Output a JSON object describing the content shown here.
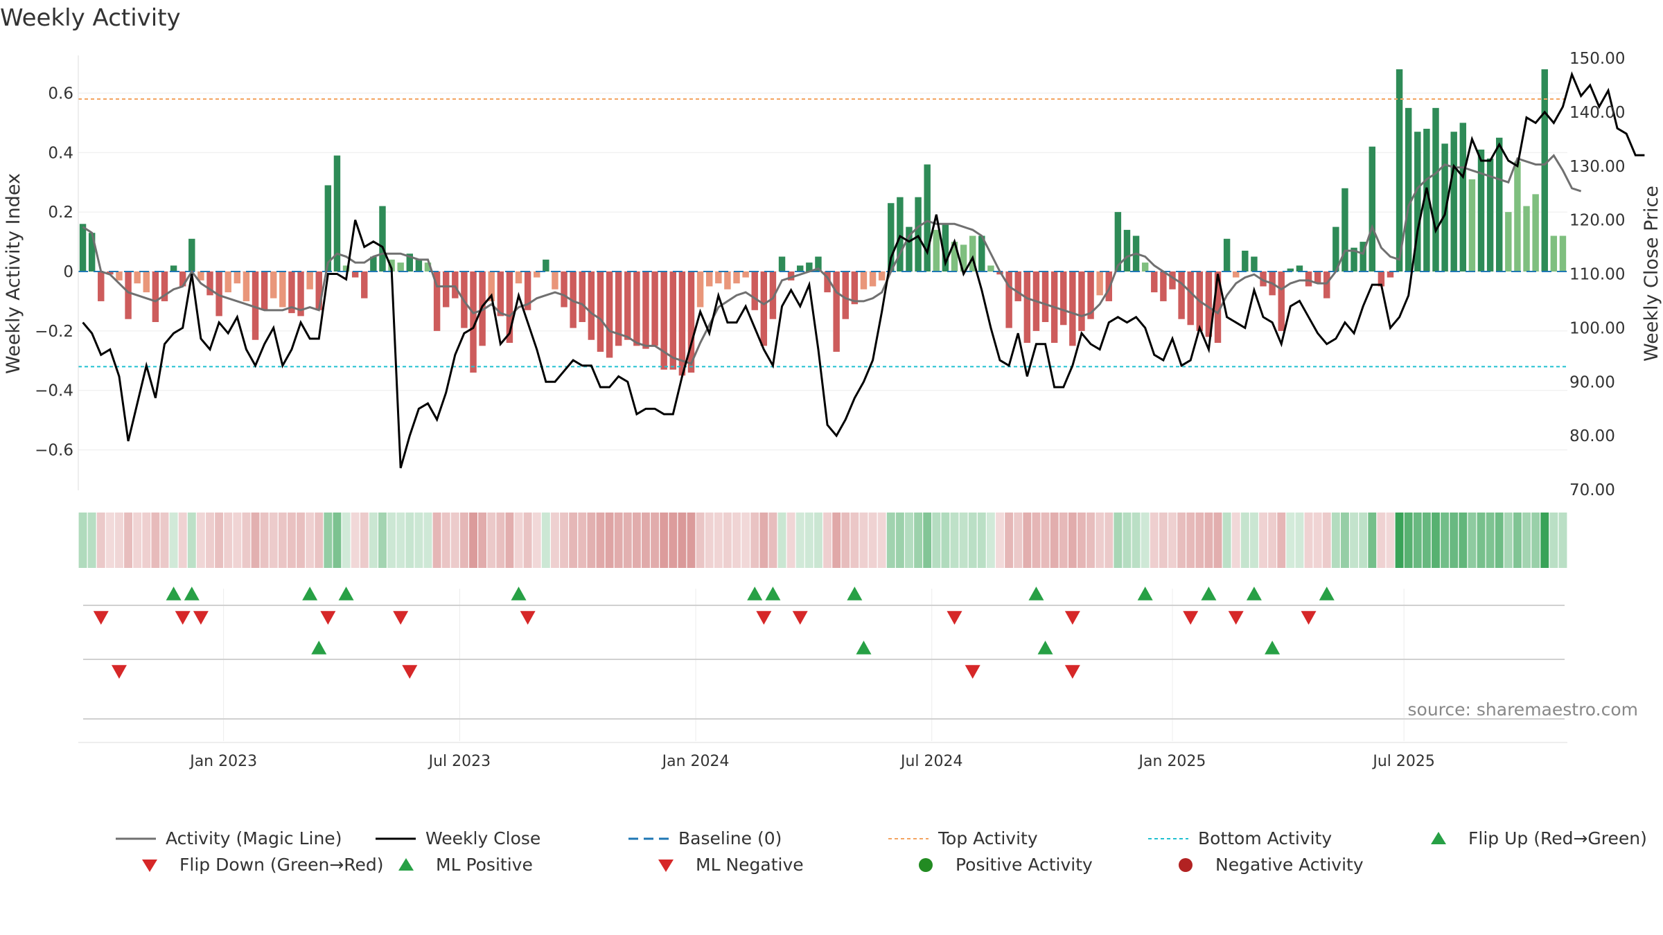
{
  "title": "Weekly Activity",
  "source": "source: sharemaestro.com",
  "colors": {
    "strong_green": "#2e8b57",
    "light_green": "#7fbf7f",
    "strong_red": "#cd5c5c",
    "light_red": "#e9967a",
    "magic_line": "#707070",
    "close_line": "#000000",
    "baseline": "#1f77b4",
    "top": "#f4a460",
    "bottom": "#20c0d0",
    "marker_green": "#27a045",
    "marker_red": "#d62728"
  },
  "chart_data": {
    "type": "bar+line",
    "title": "Weekly Activity",
    "ylabel_left": "Weekly Activity Index",
    "ylabel_right": "Weekly Close Price",
    "ylim_left": [
      -0.75,
      0.75
    ],
    "ylim_right": [
      70,
      150
    ],
    "y_ticks_left": [
      "0.6",
      "0.4",
      "0.2",
      "0",
      "−0.2",
      "−0.4",
      "−0.6"
    ],
    "y_tick_values_left": [
      0.6,
      0.4,
      0.2,
      0,
      -0.2,
      -0.4,
      -0.6
    ],
    "y_ticks_right": [
      "150.00",
      "140.00",
      "130.00",
      "120.00",
      "110.00",
      "100.00",
      "90.00",
      "80.00",
      "70.00"
    ],
    "y_tick_values_right": [
      150,
      140,
      130,
      120,
      110,
      100,
      90,
      80,
      70
    ],
    "x_ticks": [
      {
        "label": "Jan 2023",
        "week": 15.5
      },
      {
        "label": "Jul 2023",
        "week": 41.5
      },
      {
        "label": "Jan 2024",
        "week": 67.5
      },
      {
        "label": "Jul 2024",
        "week": 93.5
      },
      {
        "label": "Jan 2025",
        "week": 120
      },
      {
        "label": "Jul 2025",
        "week": 145.5
      }
    ],
    "top_activity": 0.58,
    "bottom_activity": -0.32,
    "baseline": 0,
    "activity": [
      0.16,
      0.13,
      -0.1,
      -0.01,
      -0.03,
      -0.16,
      -0.04,
      -0.07,
      -0.17,
      -0.1,
      0.02,
      -0.05,
      0.11,
      -0.03,
      -0.08,
      -0.15,
      -0.07,
      -0.04,
      -0.1,
      -0.23,
      -0.13,
      -0.09,
      -0.12,
      -0.14,
      -0.15,
      -0.06,
      -0.13,
      0.29,
      0.39,
      0.02,
      -0.02,
      -0.09,
      0.05,
      0.22,
      0.04,
      0.03,
      0.06,
      0.04,
      0.03,
      -0.2,
      -0.12,
      -0.09,
      -0.19,
      -0.34,
      -0.25,
      -0.1,
      -0.15,
      -0.24,
      -0.04,
      -0.13,
      -0.02,
      0.04,
      -0.06,
      -0.12,
      -0.19,
      -0.17,
      -0.23,
      -0.27,
      -0.29,
      -0.25,
      -0.23,
      -0.25,
      -0.26,
      -0.25,
      -0.33,
      -0.33,
      -0.35,
      -0.34,
      -0.12,
      -0.05,
      -0.04,
      -0.06,
      -0.04,
      -0.02,
      -0.13,
      -0.25,
      -0.16,
      0.05,
      -0.03,
      0.02,
      0.03,
      0.05,
      -0.07,
      -0.27,
      -0.16,
      -0.11,
      -0.06,
      -0.05,
      -0.03,
      0.23,
      0.25,
      0.15,
      0.25,
      0.36,
      0.14,
      0.16,
      0.1,
      0.09,
      0.12,
      0.12,
      0.02,
      -0.01,
      -0.19,
      -0.1,
      -0.24,
      -0.2,
      -0.17,
      -0.24,
      -0.18,
      -0.25,
      -0.2,
      -0.16,
      -0.08,
      -0.1,
      0.2,
      0.14,
      0.12,
      0.03,
      -0.07,
      -0.1,
      -0.06,
      -0.16,
      -0.18,
      -0.2,
      -0.22,
      -0.24,
      0.11,
      -0.02,
      0.07,
      0.05,
      -0.05,
      -0.08,
      -0.2,
      0.01,
      0.02,
      -0.05,
      -0.04,
      -0.09,
      0.15,
      0.28,
      0.08,
      0.1,
      0.42,
      -0.05,
      -0.02,
      0.68,
      0.55,
      0.47,
      0.48,
      0.55,
      0.43,
      0.47,
      0.5,
      0.31,
      0.41,
      0.38,
      0.45,
      0.2,
      0.37,
      0.22,
      0.26,
      0.68,
      0.12,
      0.12
    ],
    "magic_line": [
      0.15,
      0.13,
      0.0,
      -0.01,
      -0.04,
      -0.07,
      -0.08,
      -0.09,
      -0.1,
      -0.08,
      -0.06,
      -0.05,
      0.0,
      -0.04,
      -0.06,
      -0.08,
      -0.09,
      -0.1,
      -0.11,
      -0.12,
      -0.13,
      -0.13,
      -0.13,
      -0.12,
      -0.13,
      -0.12,
      -0.13,
      0.03,
      0.06,
      0.05,
      0.03,
      0.03,
      0.05,
      0.06,
      0.06,
      0.06,
      0.05,
      0.04,
      0.04,
      -0.05,
      -0.05,
      -0.05,
      -0.1,
      -0.14,
      -0.13,
      -0.11,
      -0.14,
      -0.15,
      -0.12,
      -0.11,
      -0.09,
      -0.08,
      -0.07,
      -0.08,
      -0.1,
      -0.11,
      -0.14,
      -0.16,
      -0.2,
      -0.21,
      -0.22,
      -0.24,
      -0.25,
      -0.25,
      -0.27,
      -0.29,
      -0.3,
      -0.31,
      -0.24,
      -0.18,
      -0.12,
      -0.1,
      -0.08,
      -0.07,
      -0.09,
      -0.11,
      -0.09,
      -0.03,
      -0.02,
      -0.01,
      0.0,
      0.01,
      -0.02,
      -0.07,
      -0.09,
      -0.1,
      -0.1,
      -0.09,
      -0.07,
      0.0,
      0.06,
      0.12,
      0.15,
      0.17,
      0.16,
      0.16,
      0.16,
      0.15,
      0.14,
      0.12,
      0.06,
      0.0,
      -0.05,
      -0.07,
      -0.09,
      -0.1,
      -0.11,
      -0.12,
      -0.13,
      -0.14,
      -0.15,
      -0.14,
      -0.11,
      -0.06,
      0.02,
      0.05,
      0.06,
      0.05,
      0.02,
      0.0,
      -0.02,
      -0.04,
      -0.07,
      -0.1,
      -0.12,
      -0.14,
      -0.08,
      -0.04,
      -0.02,
      -0.01,
      -0.03,
      -0.04,
      -0.06,
      -0.04,
      -0.03,
      -0.03,
      -0.04,
      -0.04,
      0.0,
      0.07,
      0.07,
      0.06,
      0.15,
      0.08,
      0.05,
      0.04,
      0.22,
      0.28,
      0.31,
      0.33,
      0.36,
      0.35,
      0.35,
      0.34,
      0.33,
      0.32,
      0.31,
      0.3,
      0.38,
      0.37,
      0.36,
      0.36,
      0.39,
      0.34,
      0.28,
      0.27
    ],
    "weekly_close": [
      101,
      99,
      95,
      96,
      91,
      79,
      86,
      93,
      87,
      97,
      99,
      100,
      110,
      98,
      96,
      101,
      99,
      102,
      96,
      93,
      97,
      100,
      93,
      96,
      101,
      98,
      98,
      110,
      110,
      109,
      120,
      115,
      116,
      115,
      111,
      74,
      80,
      85,
      86,
      83,
      88,
      95,
      99,
      100,
      104,
      106,
      97,
      99,
      106,
      101,
      96,
      90,
      90,
      92,
      94,
      93,
      93,
      89,
      89,
      91,
      90,
      84,
      85,
      85,
      84,
      84,
      91,
      97,
      103,
      99,
      106,
      101,
      101,
      104,
      100,
      96,
      93,
      104,
      107,
      104,
      108,
      96,
      82,
      80,
      83,
      87,
      90,
      94,
      103,
      113,
      117,
      116,
      117,
      114,
      121,
      112,
      116,
      110,
      113,
      107,
      100,
      94,
      93,
      99,
      91,
      97,
      97,
      89,
      89,
      93,
      99,
      97,
      96,
      101,
      102,
      101,
      102,
      100,
      95,
      94,
      98,
      93,
      94,
      100,
      96,
      110,
      102,
      101,
      100,
      107,
      102,
      101,
      97,
      104,
      105,
      102,
      99,
      97,
      98,
      101,
      99,
      104,
      108,
      108,
      100,
      102,
      106,
      118,
      126,
      118,
      121,
      130,
      128,
      135,
      131,
      131,
      134,
      131,
      130,
      139,
      138,
      140,
      138,
      141,
      147,
      143,
      145,
      141,
      144,
      137,
      136,
      132,
      132
    ]
  },
  "bands": [
    {
      "label": "Flip Up (Red→Green)",
      "weeks": [
        10,
        12,
        25,
        29,
        48,
        74,
        76,
        85,
        105,
        117,
        124,
        129,
        137
      ]
    },
    {
      "label": "Flip Down (Green→Red)",
      "weeks": [
        2,
        11,
        13,
        27,
        35,
        49,
        75,
        79,
        96,
        109,
        122,
        127,
        135
      ]
    },
    {
      "label": "ML Positive",
      "weeks": [
        26,
        86,
        106,
        131
      ]
    },
    {
      "label": "ML Negative",
      "weeks": [
        4,
        36,
        98,
        109
      ]
    }
  ],
  "legend": [
    {
      "label": "Activity (Magic Line)",
      "kind": "line",
      "color": "#707070"
    },
    {
      "label": "Weekly Close",
      "kind": "line",
      "color": "#000000"
    },
    {
      "label": "Baseline (0)",
      "kind": "dash",
      "color": "#1f77b4"
    },
    {
      "label": "Top Activity",
      "kind": "dot",
      "color": "#f4a460"
    },
    {
      "label": "Bottom Activity",
      "kind": "dot",
      "color": "#20c0d0"
    },
    {
      "label": "Flip Up (Red→Green)",
      "kind": "tri-up",
      "color": "#27a045"
    },
    {
      "label": "Flip Down (Green→Red)",
      "kind": "tri-down",
      "color": "#d62728"
    },
    {
      "label": "ML Positive",
      "kind": "tri-up",
      "color": "#27a045"
    },
    {
      "label": "ML Negative",
      "kind": "tri-down",
      "color": "#d62728"
    },
    {
      "label": "Positive Activity",
      "kind": "circle",
      "color": "#228b22"
    },
    {
      "label": "Negative Activity",
      "kind": "circle",
      "color": "#b22222"
    }
  ]
}
